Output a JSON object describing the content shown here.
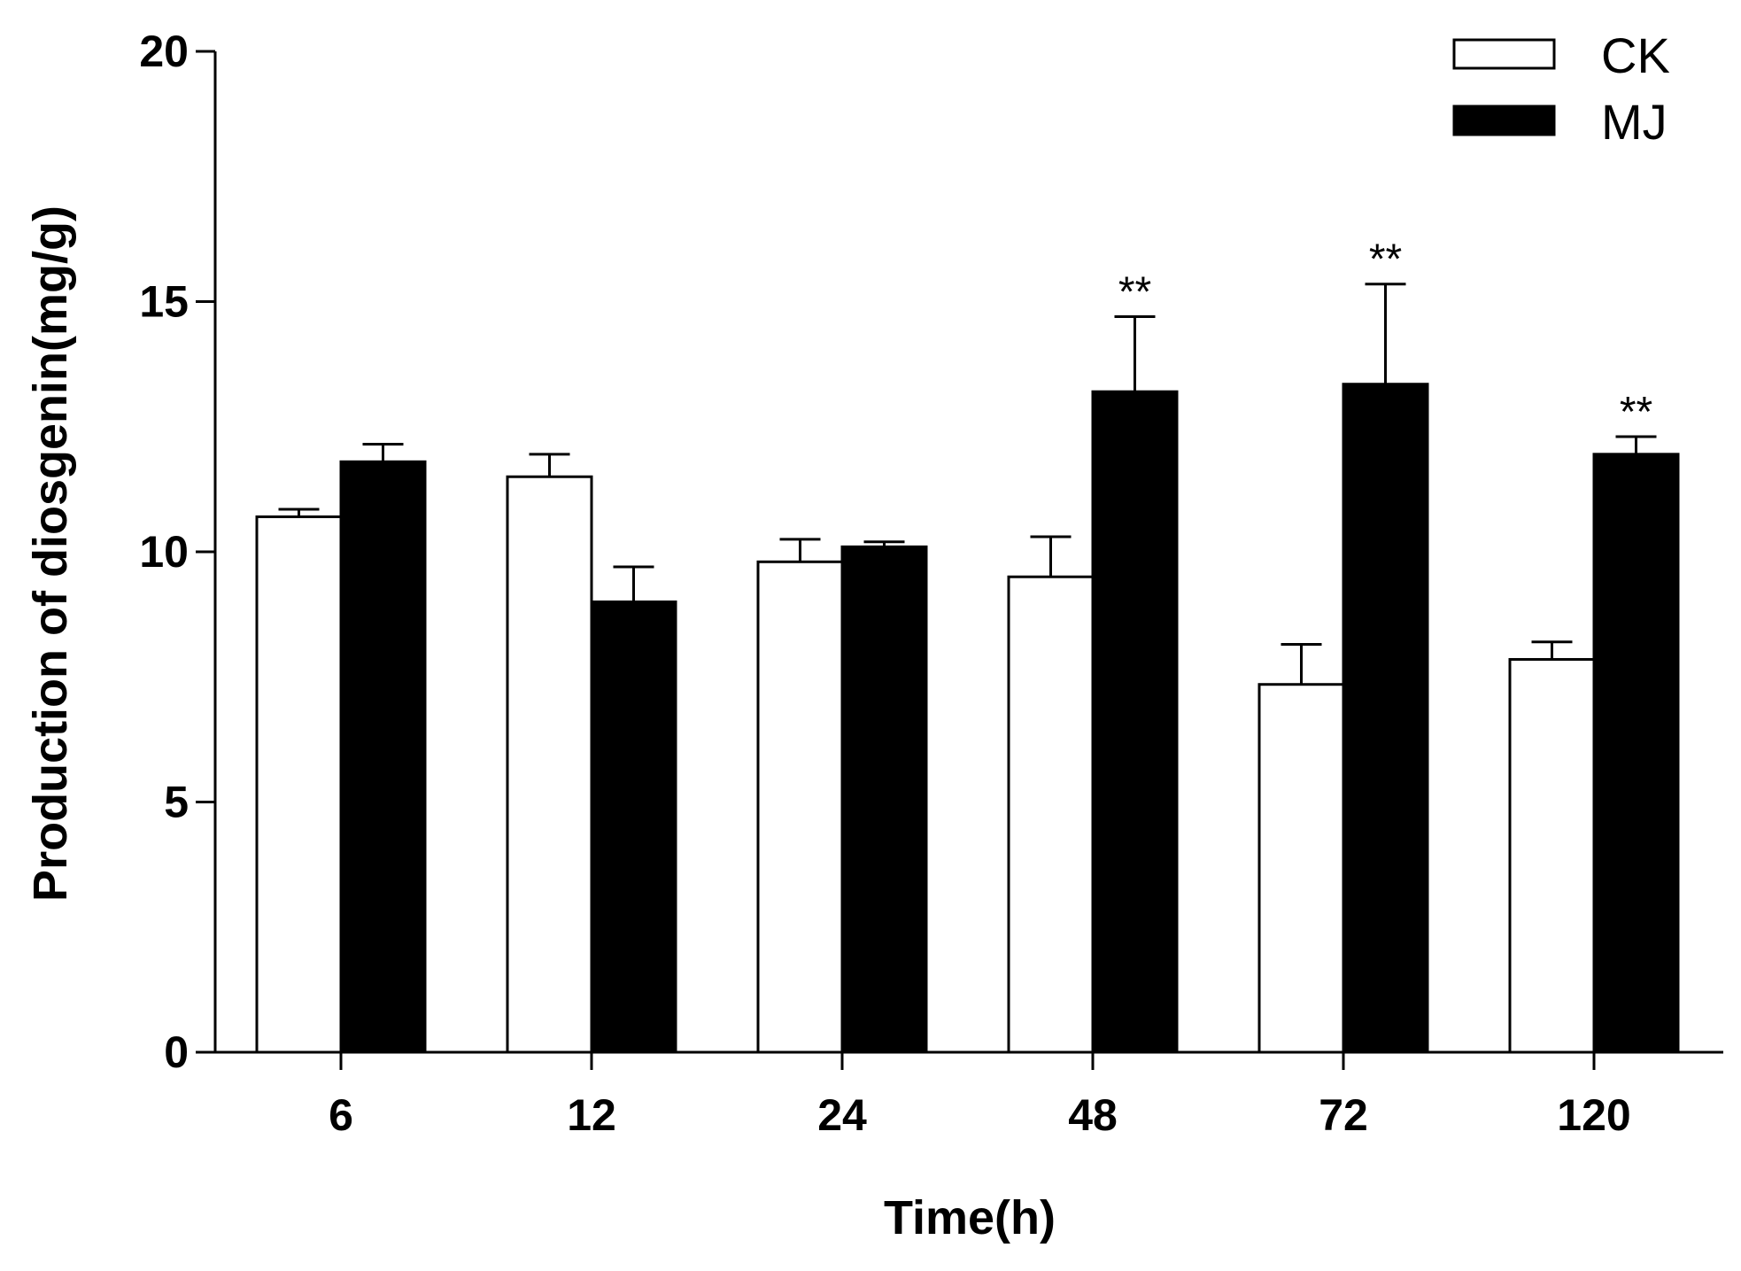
{
  "chart_data": {
    "type": "bar",
    "title": "",
    "xlabel": "Time(h)",
    "ylabel": "Production of diosgenin(mg/g)",
    "ylim": [
      0,
      20
    ],
    "yticks": [
      "0",
      "5",
      "10",
      "15",
      "20"
    ],
    "ytick_values": [
      0,
      5,
      10,
      15,
      20
    ],
    "categories": [
      "6",
      "12",
      "24",
      "48",
      "72",
      "120"
    ],
    "series": [
      {
        "name": "CK",
        "fill": "#ffffff",
        "values": [
          10.7,
          11.5,
          9.8,
          9.5,
          7.35,
          7.85
        ],
        "errors": [
          0.15,
          0.45,
          0.45,
          0.8,
          0.8,
          0.35
        ],
        "significance": [
          "",
          "",
          "",
          "",
          "",
          ""
        ]
      },
      {
        "name": "MJ",
        "fill": "#000000",
        "values": [
          11.8,
          9.0,
          10.1,
          13.2,
          13.35,
          11.95
        ],
        "errors": [
          0.35,
          0.7,
          0.1,
          1.5,
          2.0,
          0.35
        ],
        "significance": [
          "",
          "",
          "",
          "**",
          "**",
          "**"
        ]
      }
    ],
    "legend_position": "top-right",
    "grid": false
  },
  "colors": {
    "axis": "#000000",
    "bar_outline": "#000000"
  }
}
